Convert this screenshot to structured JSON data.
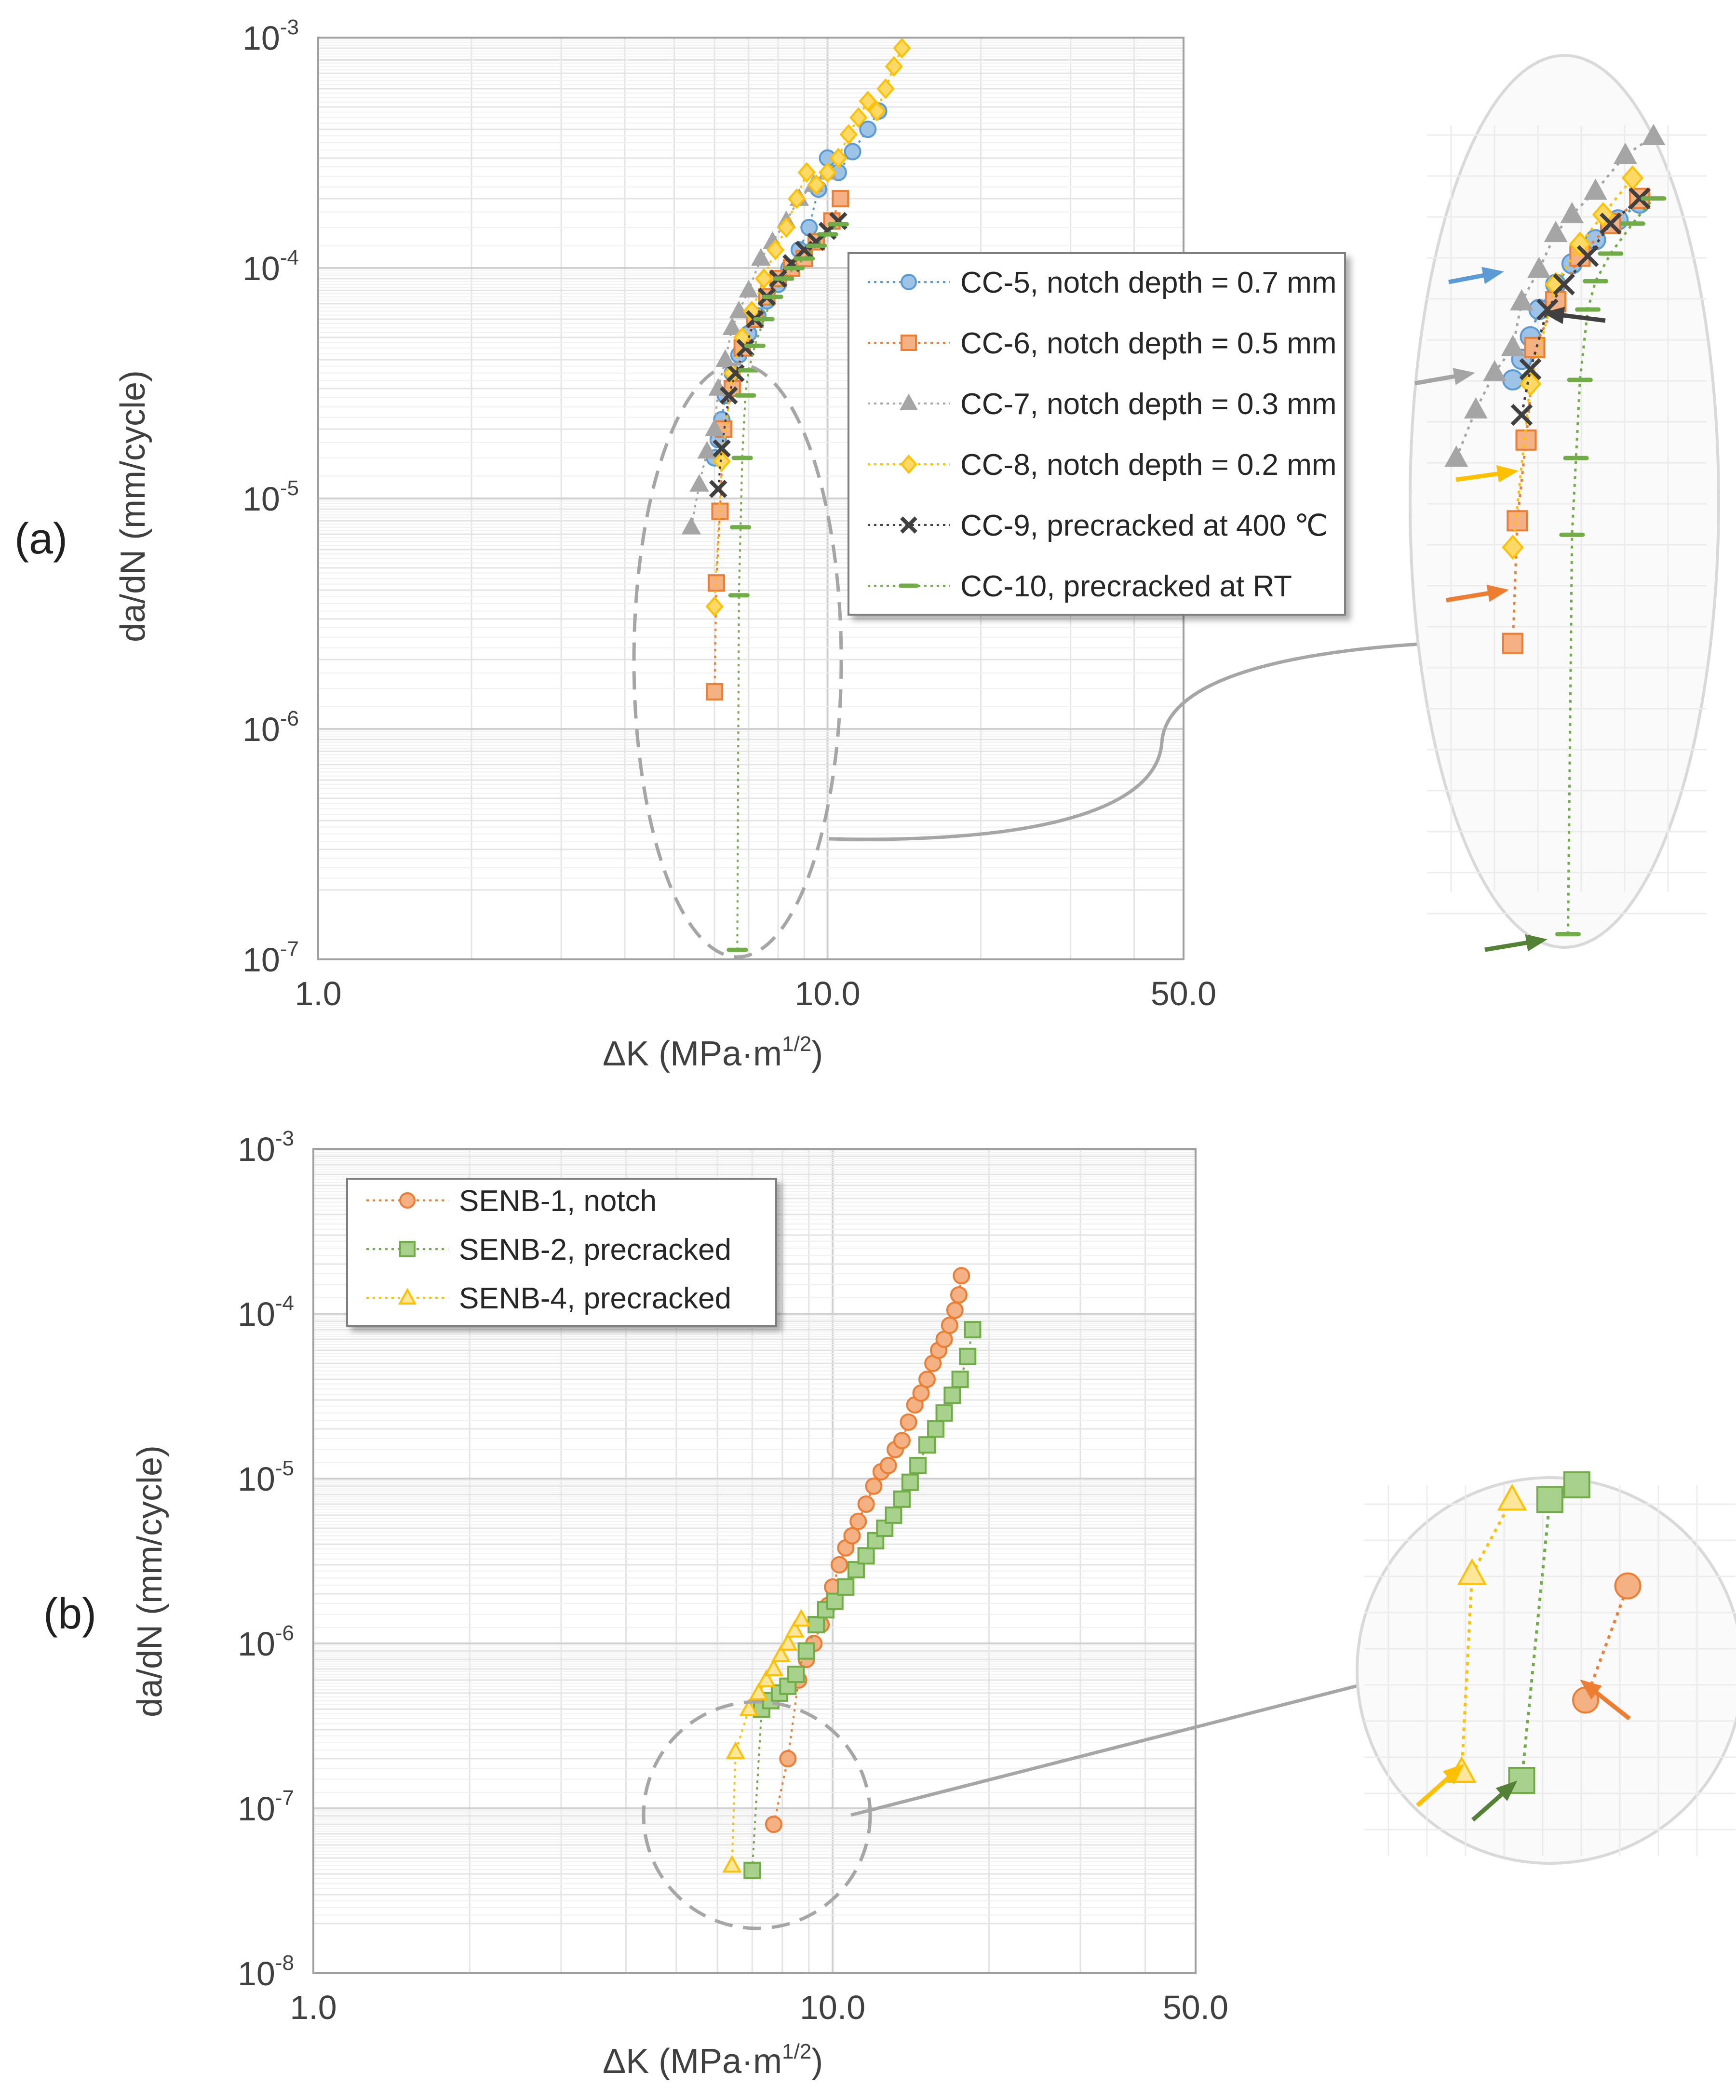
{
  "chart_data": [
    {
      "id": "a",
      "type": "scatter",
      "panel_label": "(a)",
      "xlabel": "ΔK (MPa·m",
      "xlabel_exp": "1/2",
      "xlabel_close": ")",
      "ylabel": "da/dN (mm/cycle)",
      "xscale": "log",
      "yscale": "log",
      "xlim": [
        1.0,
        50.0
      ],
      "ylim": [
        1e-07,
        0.001
      ],
      "x_ticks": [
        "1.0",
        "10.0",
        "50.0"
      ],
      "y_tick_base": "10",
      "y_ticks": [
        "-3",
        "-4",
        "-5",
        "-6",
        "-7"
      ],
      "grid": true,
      "legend_position": "right",
      "series": [
        {
          "name": "CC-5, notch depth = 0.7 mm",
          "color": "#5b9bd5",
          "fill": "#9dc3e6",
          "marker": "circle",
          "x": [
            6.0,
            6.1,
            6.2,
            6.3,
            6.5,
            6.7,
            7.0,
            7.3,
            7.6,
            8.0,
            8.4,
            8.8,
            9.2,
            9.6,
            10.0,
            10.5,
            11.2,
            12.0,
            12.6
          ],
          "y": [
            1.5e-05,
            1.8e-05,
            2.2e-05,
            2.8e-05,
            3.5e-05,
            4.2e-05,
            5.2e-05,
            6.2e-05,
            7.2e-05,
            8.5e-05,
            0.0001,
            0.00012,
            0.00015,
            0.00022,
            0.0003,
            0.00026,
            0.00032,
            0.0004,
            0.00048
          ]
        },
        {
          "name": "CC-6, notch depth = 0.5 mm",
          "color": "#ed7d31",
          "fill": "#f4b183",
          "marker": "square",
          "x": [
            6.0,
            6.05,
            6.15,
            6.25,
            6.5,
            6.8,
            7.2,
            7.6,
            8.0,
            8.5,
            9.0,
            9.5,
            10.2,
            10.6
          ],
          "y": [
            1.45e-06,
            4.3e-06,
            8.8e-06,
            2e-05,
            3e-05,
            4.5e-05,
            6e-05,
            7.5e-05,
            9e-05,
            0.0001,
            0.00011,
            0.00013,
            0.00016,
            0.0002
          ]
        },
        {
          "name": "CC-7, notch depth = 0.3 mm",
          "color": "#a5a5a5",
          "fill": "#a5a5a5",
          "marker": "triangle",
          "x": [
            5.4,
            5.6,
            5.8,
            6.0,
            6.1,
            6.3,
            6.5,
            6.7,
            7.0,
            7.4,
            7.8,
            8.3,
            8.8,
            9.4,
            10.0
          ],
          "y": [
            7.5e-06,
            1.15e-05,
            1.6e-05,
            2e-05,
            3e-05,
            4e-05,
            5.5e-05,
            6.5e-05,
            8e-05,
            0.00011,
            0.00013,
            0.00016,
            0.0002,
            0.00023,
            0.00026
          ]
        },
        {
          "name": "CC-8, notch depth = 0.2 mm",
          "color": "#ffc000",
          "fill": "#ffd966",
          "marker": "diamond",
          "x": [
            6.0,
            6.2,
            6.5,
            6.8,
            7.1,
            7.5,
            7.9,
            8.3,
            8.7,
            9.1,
            9.5,
            10.0,
            10.5,
            11.0,
            11.5,
            12.0,
            12.5,
            13.0,
            13.5,
            14.0
          ],
          "y": [
            3.4e-06,
            1.45e-05,
            3.5e-05,
            5e-05,
            6.5e-05,
            9e-05,
            0.00012,
            0.00015,
            0.0002,
            0.00026,
            0.00023,
            0.00026,
            0.0003,
            0.00038,
            0.00045,
            0.00053,
            0.00048,
            0.0006,
            0.00075,
            0.0009
          ]
        },
        {
          "name": "CC-9, precracked at 400 ℃",
          "color": "#404040",
          "fill": "#404040",
          "marker": "x",
          "x": [
            6.1,
            6.2,
            6.4,
            6.6,
            6.9,
            7.2,
            7.6,
            8.0,
            8.5,
            9.0,
            9.5,
            10.0,
            10.5
          ],
          "y": [
            1.1e-05,
            1.65e-05,
            2.8e-05,
            3.5e-05,
            4.5e-05,
            6e-05,
            7.5e-05,
            9e-05,
            0.000105,
            0.00012,
            0.00013,
            0.000145,
            0.00016
          ]
        },
        {
          "name": "CC-10, precracked at RT",
          "color": "#70ad47",
          "fill": "#70ad47",
          "marker": "dash",
          "x": [
            6.65,
            6.7,
            6.75,
            6.8,
            6.9,
            7.0,
            7.2,
            7.5,
            7.8,
            8.2,
            8.6,
            9.0,
            9.5,
            10.0,
            10.5
          ],
          "y": [
            1.1e-07,
            3.8e-06,
            7.5e-06,
            1.5e-05,
            2.8e-05,
            3.6e-05,
            4.6e-05,
            6e-05,
            7.5e-05,
            9e-05,
            0.0001,
            0.00011,
            0.000125,
            0.00014,
            0.000155
          ]
        }
      ]
    },
    {
      "id": "b",
      "type": "scatter",
      "panel_label": "(b)",
      "xlabel": "ΔK (MPa·m",
      "xlabel_exp": "1/2",
      "xlabel_close": ")",
      "ylabel": "da/dN (mm/cycle)",
      "xscale": "log",
      "yscale": "log",
      "xlim": [
        1.0,
        50.0
      ],
      "ylim": [
        1e-08,
        0.001
      ],
      "x_ticks": [
        "1.0",
        "10.0",
        "50.0"
      ],
      "y_tick_base": "10",
      "y_ticks": [
        "-3",
        "-4",
        "-5",
        "-6",
        "-7",
        "-8"
      ],
      "grid": true,
      "legend_position": "top-left",
      "series": [
        {
          "name": "SENB-1, notch",
          "color": "#ed7d31",
          "fill": "#f4b183",
          "marker": "circle",
          "x": [
            7.7,
            8.2,
            8.6,
            8.9,
            9.2,
            9.5,
            9.8,
            10.0,
            10.3,
            10.6,
            10.9,
            11.2,
            11.6,
            12.0,
            12.4,
            12.8,
            13.2,
            13.6,
            14.0,
            14.4,
            14.8,
            15.2,
            15.6,
            16.0,
            16.4,
            16.8,
            17.2,
            17.5,
            17.7
          ],
          "y": [
            8e-08,
            2e-07,
            6e-07,
            8e-07,
            1e-06,
            1.3e-06,
            1.7e-06,
            2.2e-06,
            3e-06,
            3.8e-06,
            4.5e-06,
            5.5e-06,
            7e-06,
            9e-06,
            1.1e-05,
            1.2e-05,
            1.5e-05,
            1.7e-05,
            2.2e-05,
            2.8e-05,
            3.3e-05,
            4e-05,
            5e-05,
            6e-05,
            7e-05,
            8.5e-05,
            0.000105,
            0.00013,
            0.00017
          ]
        },
        {
          "name": "SENB-2, precracked",
          "color": "#70ad47",
          "fill": "#a9d18e",
          "marker": "square",
          "x": [
            7.0,
            7.3,
            7.6,
            7.9,
            8.2,
            8.5,
            8.9,
            9.3,
            9.7,
            10.1,
            10.6,
            11.1,
            11.6,
            12.1,
            12.6,
            13.1,
            13.6,
            14.1,
            14.6,
            15.2,
            15.8,
            16.4,
            17.0,
            17.6,
            18.2,
            18.6
          ],
          "y": [
            4.2e-08,
            4e-07,
            4.5e-07,
            5e-07,
            5.5e-07,
            6.5e-07,
            9e-07,
            1.3e-06,
            1.6e-06,
            1.8e-06,
            2.2e-06,
            2.8e-06,
            3.4e-06,
            4.2e-06,
            5e-06,
            6e-06,
            7.5e-06,
            9.5e-06,
            1.2e-05,
            1.6e-05,
            2e-05,
            2.5e-05,
            3.2e-05,
            4e-05,
            5.5e-05,
            8e-05
          ]
        },
        {
          "name": "SENB-4, precracked",
          "color": "#ffc000",
          "fill": "#ffe699",
          "marker": "triangle",
          "x": [
            6.4,
            6.5,
            6.9,
            7.2,
            7.45,
            7.7,
            7.95,
            8.2,
            8.45,
            8.7
          ],
          "y": [
            4.5e-08,
            2.2e-07,
            4e-07,
            5e-07,
            6e-07,
            7e-07,
            8.5e-07,
            1e-06,
            1.2e-06,
            1.4e-06
          ]
        }
      ]
    }
  ]
}
